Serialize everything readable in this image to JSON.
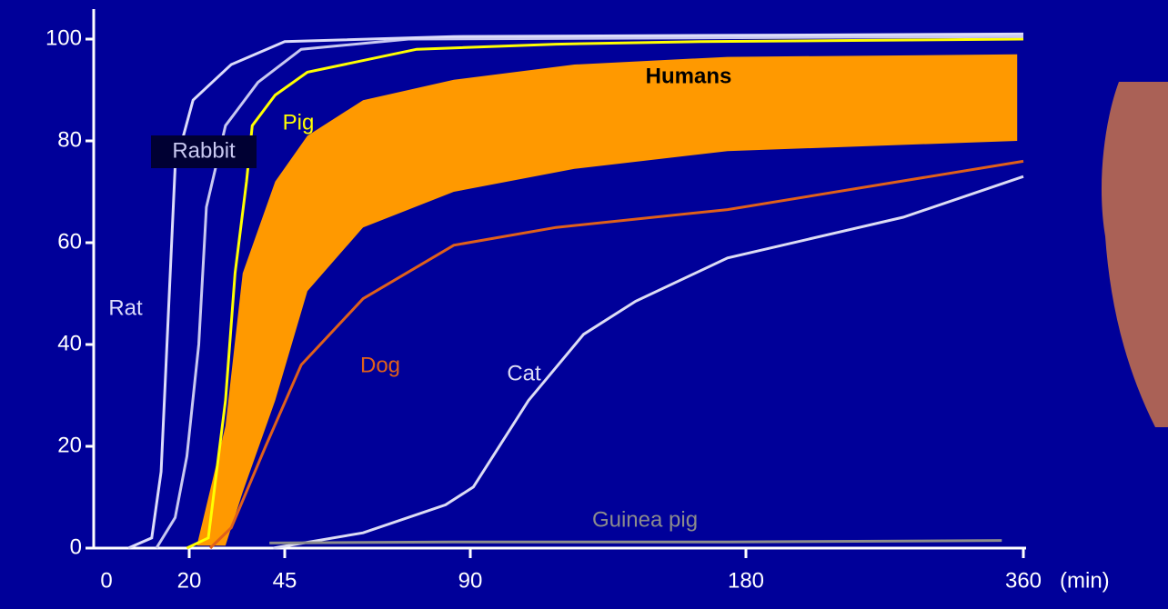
{
  "chart_data": {
    "type": "line",
    "x_label": "(min)",
    "xticks": [
      0,
      20,
      45,
      90,
      180,
      360
    ],
    "ylim": [
      0,
      100
    ],
    "yticks": [
      0,
      20,
      40,
      60,
      80,
      100
    ],
    "series": [
      {
        "name": "Rat",
        "color": "#dcdcfa",
        "x": [
          7,
          12,
          14,
          15.5,
          17,
          21,
          31,
          45,
          86,
          360
        ],
        "values": [
          0,
          2,
          15,
          45,
          75,
          88,
          95,
          99.5,
          100.5,
          101
        ]
      },
      {
        "name": "Rabbit",
        "color": "#c8c8f0",
        "x": [
          13,
          17,
          19.5,
          22.5,
          24.5,
          29.5,
          38,
          49,
          75,
          360
        ],
        "values": [
          0,
          6,
          18,
          40,
          67,
          83,
          91.5,
          98,
          100,
          100.5
        ]
      },
      {
        "name": "Pig",
        "color": "#ffff00",
        "x": [
          19.5,
          25,
          29.5,
          32,
          35,
          36.5,
          42.5,
          50.5,
          77,
          118,
          165,
          360
        ],
        "values": [
          0,
          2,
          29,
          54,
          72,
          83,
          89,
          93.5,
          98,
          99,
          99.5,
          100
        ]
      },
      {
        "name": "Humans",
        "type": "band",
        "color": "#ff9900",
        "x": [
          22,
          29.5,
          34,
          42.5,
          50.5,
          64,
          86,
          124,
          174,
          356
        ],
        "upper": [
          0.5,
          24,
          54,
          72,
          81,
          88,
          92,
          95,
          96.5,
          97
        ],
        "lower": [
          0.5,
          0.5,
          11,
          29,
          50.5,
          63,
          70,
          74.5,
          78,
          80
        ]
      },
      {
        "name": "Dog",
        "color": "#e0601a",
        "x": [
          25.5,
          31,
          40,
          49,
          64,
          86,
          118,
          174,
          360
        ],
        "values": [
          0,
          4,
          20,
          36,
          49,
          59.5,
          63,
          66.5,
          76
        ]
      },
      {
        "name": "Cat",
        "color": "#dcdcf4",
        "x": [
          42,
          64,
          84,
          91,
          109,
          127,
          144,
          174,
          282,
          360
        ],
        "values": [
          0,
          3,
          8.5,
          12,
          29,
          42,
          48.5,
          57,
          65,
          73
        ]
      },
      {
        "name": "Guinea pig",
        "color": "#8c8c8c",
        "x": [
          41,
          86,
          174,
          346
        ],
        "values": [
          1,
          1.2,
          1.2,
          1.5
        ]
      }
    ]
  }
}
